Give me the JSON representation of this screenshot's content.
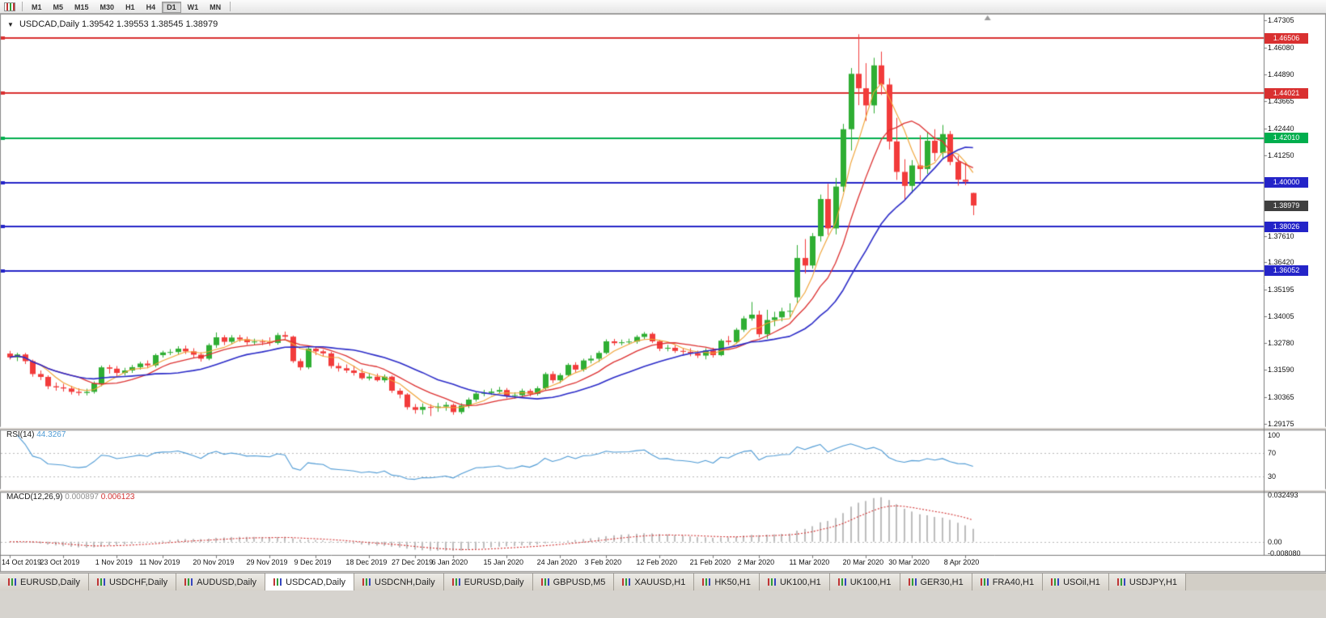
{
  "toolbar": {
    "timeframes": [
      "M1",
      "M5",
      "M15",
      "M30",
      "H1",
      "H4",
      "D1",
      "W1",
      "MN"
    ],
    "active_timeframe": "D1"
  },
  "chart": {
    "title_symbol": "USDCAD,Daily",
    "title_ohlc": "1.39542 1.39553 1.38545 1.38979",
    "hlines": [
      {
        "label": "1.46506",
        "value": 1.46506,
        "color": "#d93030"
      },
      {
        "label": "1.44021",
        "value": 1.44021,
        "color": "#d93030"
      },
      {
        "label": "1.42010",
        "value": 1.4201,
        "color": "#00ae4d"
      },
      {
        "label": "1.40000",
        "value": 1.4,
        "color": "#2424c8"
      },
      {
        "label": "1.38026",
        "value": 1.38026,
        "color": "#2424c8"
      },
      {
        "label": "1.36052",
        "value": 1.36052,
        "color": "#2424c8"
      }
    ],
    "current_price": {
      "label": "1.38979",
      "value": 1.38979,
      "bg": "#3f3f3f"
    },
    "y_ticks": [
      "1.47305",
      "1.46080",
      "1.44890",
      "1.43665",
      "1.42440",
      "1.41250",
      "1.37610",
      "1.36420",
      "1.35195",
      "1.34005",
      "1.32780",
      "1.31590",
      "1.30365",
      "1.29175"
    ]
  },
  "rsi": {
    "title": "RSI(14)",
    "value": "44.3267",
    "period": 14,
    "color": "#4f9bd5",
    "ticks": [
      {
        "label": "100",
        "value": 100
      },
      {
        "label": "70",
        "value": 70
      },
      {
        "label": "30",
        "value": 30
      }
    ],
    "levels": [
      70,
      30
    ]
  },
  "macd": {
    "title": "MACD(12,26,9)",
    "value_main": "0.000897",
    "value_signal": "0.006123",
    "fast": 12,
    "slow": 26,
    "signal": 9,
    "ticks": [
      {
        "label": "0.032493",
        "value": 0.032493
      },
      {
        "label": "0.00",
        "value": 0
      },
      {
        "label": "-0.008080",
        "value": -0.00808
      }
    ]
  },
  "tabs": {
    "active_index": 3,
    "items": [
      "EURUSD,Daily",
      "USDCHF,Daily",
      "AUDUSD,Daily",
      "USDCAD,Daily",
      "USDCNH,Daily",
      "EURUSD,Daily",
      "GBPUSD,M5",
      "XAUUSD,H1",
      "HK50,H1",
      "UK100,H1",
      "UK100,H1",
      "GER30,H1",
      "FRA40,H1",
      "USOil,H1",
      "USDJPY,H1"
    ]
  },
  "colors": {
    "up": "#2fae33",
    "down": "#f23b3b",
    "ma_fast": "#f0a233",
    "ma_mid": "#dd3030",
    "ma_slow": "#2b2bc8",
    "rsi_line": "#4f9bd5",
    "hist": "#bdbdbd",
    "macd_signal": "#d23232",
    "axis_line": "#7a7a7a",
    "level_dash": "#b8b8b8",
    "separator": "#d4d0c8"
  },
  "chart_data": {
    "type": "candlestick",
    "symbol": "USDCAD",
    "period": "Daily",
    "visible_price_range": [
      1.2905,
      1.4742
    ],
    "moving_averages": [
      {
        "period": 5,
        "color_key": "ma_fast"
      },
      {
        "period": 10,
        "color_key": "ma_mid"
      },
      {
        "period": 20,
        "color_key": "ma_slow"
      }
    ],
    "x_labels": [
      {
        "i": 0,
        "t": "14 Oct 2019"
      },
      {
        "i": 7,
        "t": "23 Oct 2019"
      },
      {
        "i": 14,
        "t": "1 Nov 2019"
      },
      {
        "i": 20,
        "t": "11 Nov 2019"
      },
      {
        "i": 27,
        "t": "20 Nov 2019"
      },
      {
        "i": 34,
        "t": "29 Nov 2019"
      },
      {
        "i": 40,
        "t": "9 Dec 2019"
      },
      {
        "i": 47,
        "t": "18 Dec 2019"
      },
      {
        "i": 53,
        "t": "27 Dec 2019"
      },
      {
        "i": 58,
        "t": "6 Jan 2020"
      },
      {
        "i": 65,
        "t": "15 Jan 2020"
      },
      {
        "i": 72,
        "t": "24 Jan 2020"
      },
      {
        "i": 78,
        "t": "3 Feb 2020"
      },
      {
        "i": 85,
        "t": "12 Feb 2020"
      },
      {
        "i": 92,
        "t": "21 Feb 2020"
      },
      {
        "i": 98,
        "t": "2 Mar 2020"
      },
      {
        "i": 105,
        "t": "11 Mar 2020"
      },
      {
        "i": 112,
        "t": "20 Mar 2020"
      },
      {
        "i": 118,
        "t": "30 Mar 2020"
      },
      {
        "i": 125,
        "t": "8 Apr 2020"
      }
    ],
    "ohlc": [
      [
        1.3232,
        1.3244,
        1.3205,
        1.3215
      ],
      [
        1.3215,
        1.3236,
        1.3198,
        1.3228
      ],
      [
        1.3228,
        1.3235,
        1.3185,
        1.3198
      ],
      [
        1.3198,
        1.3205,
        1.3128,
        1.314
      ],
      [
        1.314,
        1.3156,
        1.3113,
        1.3127
      ],
      [
        1.3127,
        1.3134,
        1.3072,
        1.3085
      ],
      [
        1.3085,
        1.3102,
        1.3065,
        1.308
      ],
      [
        1.308,
        1.3096,
        1.3061,
        1.3075
      ],
      [
        1.3075,
        1.3087,
        1.3048,
        1.306
      ],
      [
        1.306,
        1.3076,
        1.3043,
        1.3055
      ],
      [
        1.3055,
        1.3074,
        1.3044,
        1.306
      ],
      [
        1.306,
        1.3107,
        1.3052,
        1.3098
      ],
      [
        1.3098,
        1.3178,
        1.3085,
        1.317
      ],
      [
        1.317,
        1.3181,
        1.3142,
        1.3164
      ],
      [
        1.3164,
        1.3176,
        1.3128,
        1.3145
      ],
      [
        1.3145,
        1.3168,
        1.3133,
        1.3156
      ],
      [
        1.3156,
        1.3181,
        1.3145,
        1.3171
      ],
      [
        1.3171,
        1.3195,
        1.316,
        1.3187
      ],
      [
        1.3187,
        1.3201,
        1.3166,
        1.3179
      ],
      [
        1.3179,
        1.3232,
        1.317,
        1.3225
      ],
      [
        1.3225,
        1.3245,
        1.3214,
        1.3237
      ],
      [
        1.3237,
        1.3252,
        1.3225,
        1.3239
      ],
      [
        1.3239,
        1.3265,
        1.3228,
        1.3254
      ],
      [
        1.3254,
        1.3268,
        1.323,
        1.3242
      ],
      [
        1.3242,
        1.3256,
        1.3214,
        1.3227
      ],
      [
        1.3227,
        1.3238,
        1.3196,
        1.3209
      ],
      [
        1.3209,
        1.3278,
        1.3202,
        1.327
      ],
      [
        1.327,
        1.3327,
        1.3258,
        1.3305
      ],
      [
        1.3305,
        1.3315,
        1.327,
        1.3285
      ],
      [
        1.3285,
        1.3315,
        1.3274,
        1.3304
      ],
      [
        1.3304,
        1.3316,
        1.3285,
        1.3296
      ],
      [
        1.3296,
        1.3308,
        1.3271,
        1.3283
      ],
      [
        1.3283,
        1.3299,
        1.3272,
        1.3286
      ],
      [
        1.3286,
        1.3296,
        1.327,
        1.3283
      ],
      [
        1.3283,
        1.3305,
        1.3267,
        1.328
      ],
      [
        1.328,
        1.3325,
        1.3272,
        1.3315
      ],
      [
        1.3315,
        1.3331,
        1.3296,
        1.3308
      ],
      [
        1.3308,
        1.3313,
        1.319,
        1.3198
      ],
      [
        1.3198,
        1.3209,
        1.3157,
        1.317
      ],
      [
        1.317,
        1.3268,
        1.3162,
        1.3254
      ],
      [
        1.3254,
        1.3261,
        1.3225,
        1.3242
      ],
      [
        1.3242,
        1.325,
        1.3219,
        1.3233
      ],
      [
        1.3233,
        1.324,
        1.3165,
        1.3176
      ],
      [
        1.3176,
        1.319,
        1.3151,
        1.3166
      ],
      [
        1.3166,
        1.3183,
        1.3145,
        1.3156
      ],
      [
        1.3156,
        1.3178,
        1.3133,
        1.3145
      ],
      [
        1.3145,
        1.3164,
        1.3114,
        1.3121
      ],
      [
        1.3121,
        1.3144,
        1.3111,
        1.3128
      ],
      [
        1.3128,
        1.3142,
        1.3106,
        1.3112
      ],
      [
        1.3112,
        1.3138,
        1.3102,
        1.3128
      ],
      [
        1.3128,
        1.3133,
        1.3055,
        1.3065
      ],
      [
        1.3065,
        1.3076,
        1.3031,
        1.3048
      ],
      [
        1.3048,
        1.3054,
        1.298,
        1.2991
      ],
      [
        1.2991,
        1.3005,
        1.2962,
        1.2979
      ],
      [
        1.2979,
        1.3008,
        1.2958,
        1.2992
      ],
      [
        1.2992,
        1.3004,
        1.2951,
        1.2988
      ],
      [
        1.2988,
        1.301,
        1.297,
        1.2994
      ],
      [
        1.2994,
        1.3014,
        1.2975,
        1.3001
      ],
      [
        1.3001,
        1.3008,
        1.2957,
        1.2969
      ],
      [
        1.2969,
        1.3009,
        1.296,
        1.2998
      ],
      [
        1.2998,
        1.3034,
        1.2987,
        1.3025
      ],
      [
        1.3025,
        1.306,
        1.3016,
        1.3052
      ],
      [
        1.3052,
        1.3069,
        1.304,
        1.3055
      ],
      [
        1.3055,
        1.3075,
        1.3046,
        1.3061
      ],
      [
        1.3061,
        1.3082,
        1.3052,
        1.3068
      ],
      [
        1.3068,
        1.3077,
        1.3031,
        1.3042
      ],
      [
        1.3042,
        1.3058,
        1.3029,
        1.3045
      ],
      [
        1.3045,
        1.3074,
        1.3035,
        1.3064
      ],
      [
        1.3064,
        1.3073,
        1.304,
        1.3051
      ],
      [
        1.3051,
        1.3085,
        1.3043,
        1.3076
      ],
      [
        1.3076,
        1.3148,
        1.3068,
        1.314
      ],
      [
        1.314,
        1.3152,
        1.3099,
        1.3112
      ],
      [
        1.3112,
        1.3144,
        1.3099,
        1.3135
      ],
      [
        1.3135,
        1.3189,
        1.3129,
        1.3181
      ],
      [
        1.3181,
        1.3193,
        1.3148,
        1.316
      ],
      [
        1.316,
        1.3209,
        1.3151,
        1.3201
      ],
      [
        1.3201,
        1.3224,
        1.3188,
        1.3209
      ],
      [
        1.3209,
        1.3244,
        1.3194,
        1.3235
      ],
      [
        1.3235,
        1.3296,
        1.3229,
        1.3287
      ],
      [
        1.3287,
        1.3298,
        1.3268,
        1.3279
      ],
      [
        1.3279,
        1.3295,
        1.3269,
        1.3283
      ],
      [
        1.3283,
        1.3299,
        1.3274,
        1.3286
      ],
      [
        1.3286,
        1.3315,
        1.3276,
        1.3307
      ],
      [
        1.3307,
        1.3329,
        1.3296,
        1.3321
      ],
      [
        1.3321,
        1.3328,
        1.3279,
        1.3287
      ],
      [
        1.3287,
        1.3294,
        1.3243,
        1.3254
      ],
      [
        1.3254,
        1.3271,
        1.3242,
        1.3258
      ],
      [
        1.3258,
        1.3269,
        1.3235,
        1.3244
      ],
      [
        1.3244,
        1.3254,
        1.3229,
        1.324
      ],
      [
        1.324,
        1.3256,
        1.322,
        1.3234
      ],
      [
        1.3234,
        1.3245,
        1.3212,
        1.3223
      ],
      [
        1.3223,
        1.3256,
        1.3206,
        1.3246
      ],
      [
        1.3246,
        1.3258,
        1.3214,
        1.3225
      ],
      [
        1.3225,
        1.3298,
        1.322,
        1.329
      ],
      [
        1.329,
        1.3311,
        1.327,
        1.3284
      ],
      [
        1.3284,
        1.3347,
        1.3276,
        1.3339
      ],
      [
        1.3339,
        1.3401,
        1.3329,
        1.339
      ],
      [
        1.339,
        1.3464,
        1.338,
        1.3407
      ],
      [
        1.3407,
        1.3425,
        1.3305,
        1.3319
      ],
      [
        1.3319,
        1.3429,
        1.3299,
        1.3383
      ],
      [
        1.3383,
        1.342,
        1.3355,
        1.3395
      ],
      [
        1.3395,
        1.3438,
        1.3377,
        1.3422
      ],
      [
        1.3422,
        1.3458,
        1.3394,
        1.3424
      ],
      [
        1.3485,
        1.372,
        1.346,
        1.3662
      ],
      [
        1.3662,
        1.3747,
        1.3592,
        1.3628
      ],
      [
        1.3628,
        1.3774,
        1.3614,
        1.376
      ],
      [
        1.376,
        1.3947,
        1.3736,
        1.3927
      ],
      [
        1.3927,
        1.3995,
        1.3766,
        1.3795
      ],
      [
        1.3795,
        1.4022,
        1.3768,
        1.3983
      ],
      [
        1.3983,
        1.4265,
        1.396,
        1.4241
      ],
      [
        1.4241,
        1.4516,
        1.4145,
        1.449
      ],
      [
        1.449,
        1.4668,
        1.4349,
        1.4425
      ],
      [
        1.4425,
        1.4538,
        1.4278,
        1.4348
      ],
      [
        1.4348,
        1.4562,
        1.4312,
        1.4528
      ],
      [
        1.4528,
        1.459,
        1.4395,
        1.4442
      ],
      [
        1.4442,
        1.447,
        1.415,
        1.4186
      ],
      [
        1.4186,
        1.4292,
        1.4013,
        1.4049
      ],
      [
        1.4049,
        1.4106,
        1.392,
        1.3986
      ],
      [
        1.3986,
        1.4102,
        1.3954,
        1.4078
      ],
      [
        1.4078,
        1.4214,
        1.401,
        1.4062
      ],
      [
        1.4062,
        1.4229,
        1.404,
        1.4189
      ],
      [
        1.4189,
        1.4241,
        1.4098,
        1.4134
      ],
      [
        1.4134,
        1.426,
        1.4108,
        1.4219
      ],
      [
        1.4219,
        1.4233,
        1.4079,
        1.4094
      ],
      [
        1.4094,
        1.4121,
        1.3987,
        1.4014
      ],
      [
        1.4014,
        1.4091,
        1.3989,
        1.4005
      ],
      [
        1.39542,
        1.39553,
        1.38545,
        1.38979
      ]
    ]
  }
}
